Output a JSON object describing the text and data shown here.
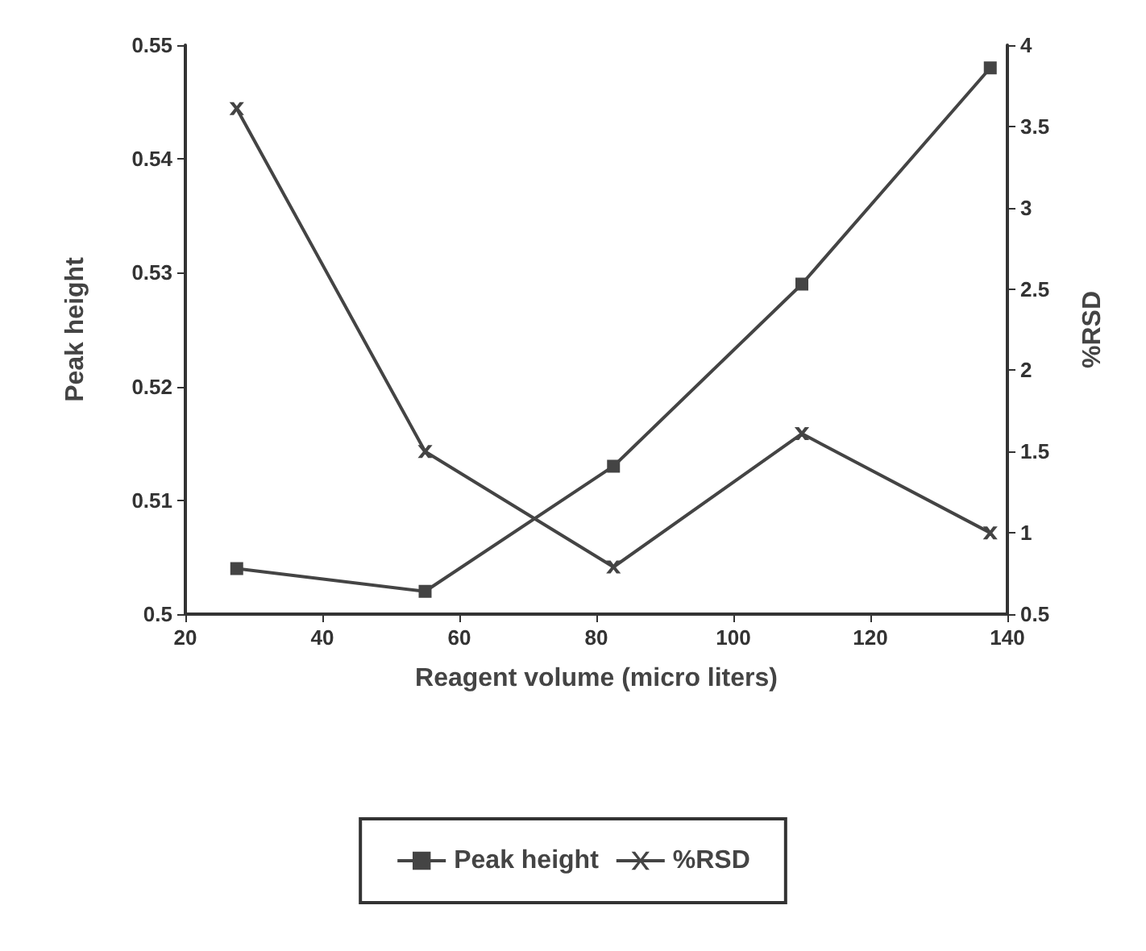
{
  "chart_data": {
    "type": "line",
    "xlabel": "Reagent volume (micro liters)",
    "ylabel": "Peak height",
    "y2label": "%RSD",
    "x": [
      27.5,
      55,
      82.5,
      110,
      137.5
    ],
    "series": [
      {
        "name": "Peak height",
        "color": "#444444",
        "marker": "square",
        "values": [
          0.504,
          0.502,
          0.513,
          0.529,
          0.548
        ]
      },
      {
        "name": "%RSD",
        "color": "#444444",
        "marker": "cross",
        "axis": "y2",
        "values": [
          3.61,
          1.5,
          0.79,
          1.61,
          1.0
        ]
      }
    ],
    "xlim": [
      20,
      140
    ],
    "xticks": [
      20,
      40,
      60,
      80,
      100,
      120,
      140
    ],
    "ylim": [
      0.5,
      0.55
    ],
    "yticks": [
      0.5,
      0.51,
      0.52,
      0.53,
      0.54,
      0.55
    ],
    "y2lim": [
      0.5,
      4
    ],
    "y2ticks": [
      0.5,
      1,
      1.5,
      2,
      2.5,
      3,
      3.5,
      4
    ],
    "grid": false,
    "legend": "bottom",
    "line_style": "solid"
  }
}
